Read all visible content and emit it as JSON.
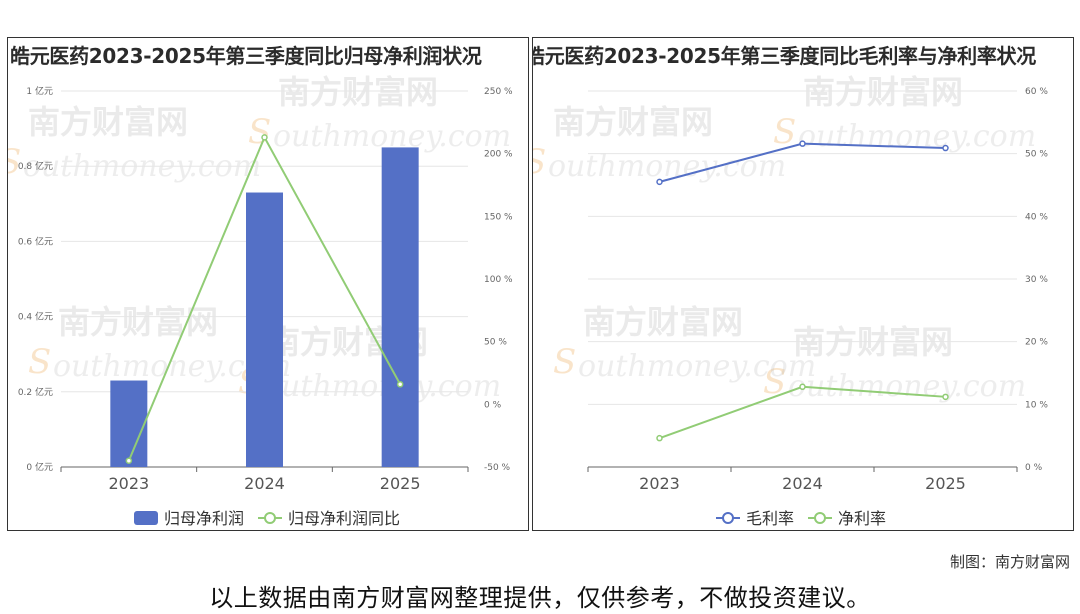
{
  "credit": "制图：南方财富网",
  "disclaimer": "以上数据由南方财富网整理提供，仅供参考，不做投资建议。",
  "watermark": {
    "cn": "南方财富网",
    "en": "outhmoney.com"
  },
  "chart_data": [
    {
      "type": "bar",
      "title": "皓元医药2023-2025年第三季度同比归母净利润状况",
      "categories": [
        "2023",
        "2024",
        "2025"
      ],
      "series": [
        {
          "name": "归母净利润",
          "kind": "bar",
          "axis": "left",
          "color": "#5470c6",
          "values": [
            0.23,
            0.73,
            0.85
          ]
        },
        {
          "name": "归母净利润同比",
          "kind": "line",
          "axis": "right",
          "color": "#91cc75",
          "values": [
            -45,
            213,
            16
          ]
        }
      ],
      "y_left": {
        "min": 0,
        "max": 1,
        "ticks": [
          "0 亿元",
          "0.2 亿元",
          "0.4 亿元",
          "0.6 亿元",
          "0.8 亿元",
          "1 亿元"
        ]
      },
      "y_right": {
        "min": -50,
        "max": 250,
        "ticks": [
          "-50 %",
          "0 %",
          "50 %",
          "100 %",
          "150 %",
          "200 %",
          "250 %"
        ]
      },
      "grid": true,
      "legend": "bottom"
    },
    {
      "type": "line",
      "title": "皓元医药2023-2025年第三季度同比毛利率与净利率状况",
      "categories": [
        "2023",
        "2024",
        "2025"
      ],
      "series": [
        {
          "name": "毛利率",
          "color": "#5470c6",
          "values": [
            45.5,
            51.6,
            50.9
          ]
        },
        {
          "name": "净利率",
          "color": "#91cc75",
          "values": [
            4.6,
            12.8,
            11.2
          ]
        }
      ],
      "y_right": {
        "min": 0,
        "max": 60,
        "ticks": [
          "0 %",
          "10 %",
          "20 %",
          "30 %",
          "40 %",
          "50 %",
          "60 %"
        ]
      },
      "grid": true,
      "legend": "bottom"
    }
  ]
}
